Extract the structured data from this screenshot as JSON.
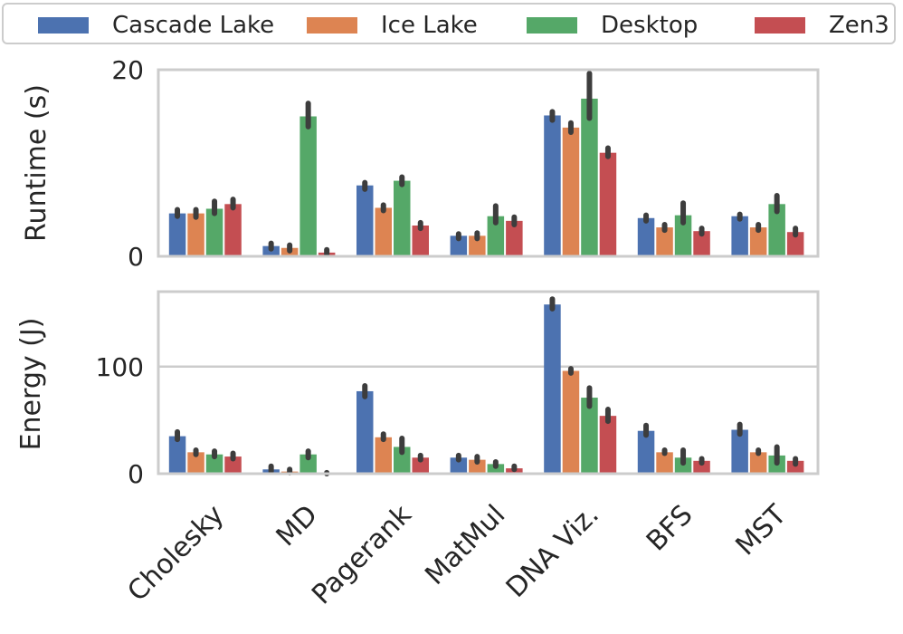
{
  "chart_data": [
    {
      "type": "bar",
      "title": "",
      "xlabel": "",
      "ylabel": "Runtime (s)",
      "ylim": [
        0,
        20
      ],
      "yticks": [
        0,
        20
      ],
      "grid": false,
      "legend": "top",
      "categories": [
        "Cholesky",
        "MD",
        "Pagerank",
        "MatMul",
        "DNA Viz.",
        "BFS",
        "MST"
      ],
      "series": [
        {
          "name": "Cascade Lake",
          "color": "#4C72B0",
          "values": [
            4.6,
            1.1,
            7.6,
            2.2,
            15.1,
            4.1,
            4.3
          ],
          "err_low": [
            4.3,
            0.8,
            7.2,
            1.9,
            14.6,
            3.8,
            4.0
          ],
          "err_high": [
            5.0,
            1.4,
            7.9,
            2.4,
            15.5,
            4.4,
            4.5
          ]
        },
        {
          "name": "Ice Lake",
          "color": "#DD8452",
          "values": [
            4.6,
            0.9,
            5.2,
            2.2,
            13.8,
            3.1,
            3.1
          ],
          "err_low": [
            4.2,
            0.6,
            4.9,
            1.9,
            13.3,
            2.8,
            2.8
          ],
          "err_high": [
            5.0,
            1.2,
            5.5,
            2.5,
            14.3,
            3.4,
            3.4
          ]
        },
        {
          "name": "Desktop",
          "color": "#55A868",
          "values": [
            5.1,
            15.0,
            8.1,
            4.3,
            16.9,
            4.4,
            5.6
          ],
          "err_low": [
            4.6,
            13.9,
            7.7,
            3.6,
            14.8,
            3.6,
            4.8
          ],
          "err_high": [
            5.9,
            16.4,
            8.5,
            5.4,
            19.6,
            5.7,
            6.5
          ]
        },
        {
          "name": "Zen3",
          "color": "#C44E52",
          "values": [
            5.6,
            0.4,
            3.3,
            3.8,
            11.1,
            2.7,
            2.6
          ],
          "err_low": [
            5.2,
            0.2,
            3.0,
            3.4,
            10.7,
            2.4,
            2.3
          ],
          "err_high": [
            6.1,
            0.7,
            3.6,
            4.2,
            11.6,
            3.0,
            3.0
          ]
        }
      ]
    },
    {
      "type": "bar",
      "title": "",
      "xlabel": "",
      "ylabel": "Energy (J)",
      "ylim": [
        0,
        170
      ],
      "yticks": [
        0,
        100
      ],
      "grid": "y",
      "categories": [
        "Cholesky",
        "MD",
        "Pagerank",
        "MatMul",
        "DNA Viz.",
        "BFS",
        "MST"
      ],
      "series": [
        {
          "name": "Cascade Lake",
          "color": "#4C72B0",
          "values": [
            35,
            4,
            77,
            15,
            158,
            40,
            41
          ],
          "err_low": [
            32,
            2,
            72,
            13,
            154,
            36,
            37
          ],
          "err_high": [
            39,
            7,
            82,
            17,
            163,
            45,
            46
          ]
        },
        {
          "name": "Ice Lake",
          "color": "#DD8452",
          "values": [
            20,
            2,
            34,
            13,
            96,
            20,
            20
          ],
          "err_low": [
            18,
            1,
            32,
            11,
            94,
            19,
            19
          ],
          "err_high": [
            22,
            4,
            37,
            16,
            98,
            22,
            22
          ]
        },
        {
          "name": "Desktop",
          "color": "#55A868",
          "values": [
            18,
            18,
            25,
            9,
            71,
            15,
            17
          ],
          "err_low": [
            16,
            15,
            20,
            7,
            63,
            10,
            10
          ],
          "err_high": [
            21,
            21,
            33,
            11,
            80,
            22,
            25
          ]
        },
        {
          "name": "Zen3",
          "color": "#C44E52",
          "values": [
            16,
            0.5,
            15,
            5,
            54,
            12,
            12
          ],
          "err_low": [
            14,
            0,
            13,
            4,
            49,
            10,
            9
          ],
          "err_high": [
            19,
            1,
            17,
            7,
            60,
            14,
            14
          ]
        }
      ]
    }
  ]
}
